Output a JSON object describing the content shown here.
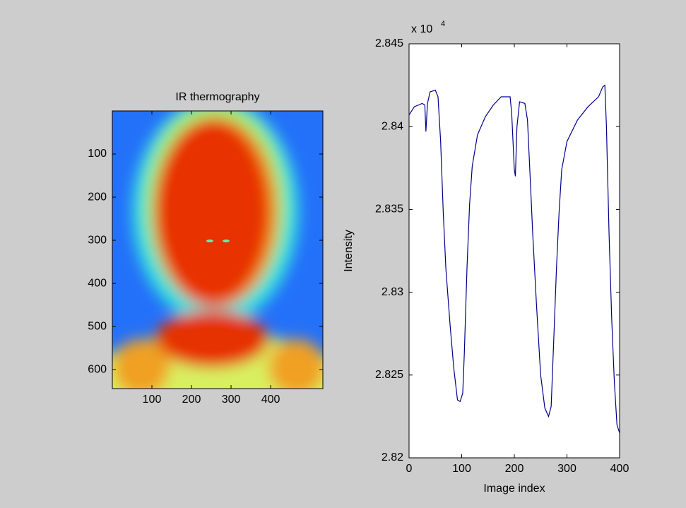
{
  "chart_data": [
    {
      "type": "image",
      "title": "IR thermography",
      "xlim": [
        0,
        532
      ],
      "ylim": [
        0,
        644
      ],
      "y_reversed": true,
      "xticks": [
        100,
        200,
        300,
        400
      ],
      "yticks": [
        100,
        200,
        300,
        400,
        500,
        600
      ]
    },
    {
      "type": "line",
      "x_label": "Image index",
      "y_label": "Intensity",
      "y_multiplier": {
        "base": "x 10",
        "power": "4"
      },
      "xlim": [
        0,
        400
      ],
      "ylim": [
        2.82,
        2.845
      ],
      "xticks": [
        0,
        100,
        200,
        300,
        400
      ],
      "yticks": [
        2.82,
        2.825,
        2.83,
        2.835,
        2.84,
        2.845
      ],
      "series": [
        {
          "name": "Intensity",
          "color": "#00008b",
          "x": [
            0,
            10,
            25,
            30,
            32,
            35,
            40,
            50,
            55,
            60,
            65,
            70,
            78,
            85,
            92,
            97,
            102,
            105,
            110,
            115,
            120,
            130,
            145,
            160,
            175,
            185,
            192,
            195,
            200,
            202,
            205,
            210,
            220,
            225,
            230,
            235,
            242,
            250,
            258,
            265,
            270,
            275,
            280,
            285,
            290,
            300,
            320,
            340,
            360,
            368,
            372,
            375,
            380,
            385,
            390,
            395,
            400
          ],
          "values": [
            2.8407,
            2.8412,
            2.8414,
            2.8413,
            2.8397,
            2.8414,
            2.8421,
            2.8422,
            2.8418,
            2.8391,
            2.8348,
            2.8314,
            2.828,
            2.8254,
            2.8235,
            2.8234,
            2.8239,
            2.8263,
            2.8314,
            2.8353,
            2.8376,
            2.8395,
            2.8406,
            2.8413,
            2.8418,
            2.8418,
            2.8418,
            2.8408,
            2.8374,
            2.837,
            2.84,
            2.8415,
            2.8414,
            2.8404,
            2.837,
            2.8335,
            2.8293,
            2.825,
            2.823,
            2.8225,
            2.8231,
            2.8272,
            2.8314,
            2.8348,
            2.8374,
            2.8391,
            2.8404,
            2.8412,
            2.8418,
            2.8424,
            2.8425,
            2.84,
            2.8335,
            2.8284,
            2.8246,
            2.822,
            2.8215
          ]
        }
      ]
    }
  ]
}
